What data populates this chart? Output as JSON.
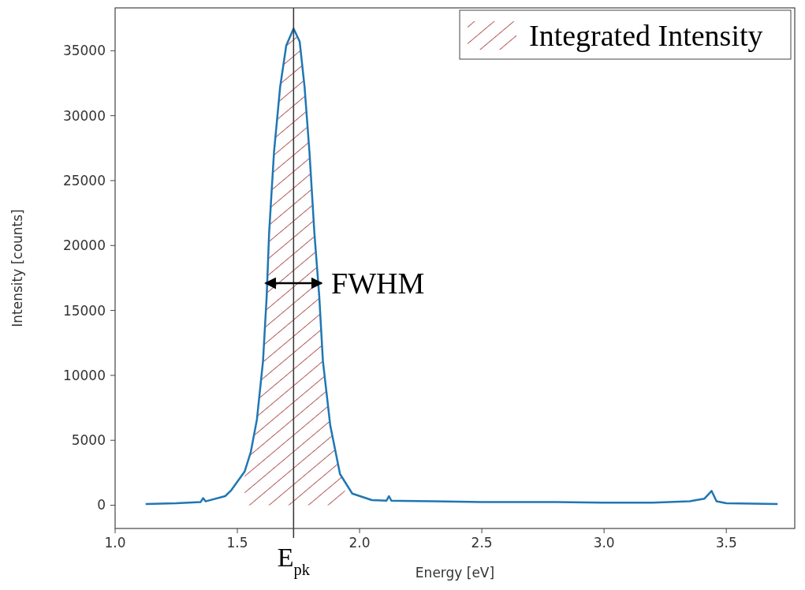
{
  "chart_data": {
    "type": "line",
    "xlabel": "Energy [eV]",
    "ylabel": "Intensity [counts]",
    "xlim": [
      1.0,
      3.78
    ],
    "ylim": [
      -1790,
      38300
    ],
    "xticks": [
      {
        "value": 1.0,
        "label": "1.0"
      },
      {
        "value": 1.5,
        "label": "1.5"
      },
      {
        "value": 2.0,
        "label": "2.0"
      },
      {
        "value": 2.5,
        "label": "2.5"
      },
      {
        "value": 3.0,
        "label": "3.0"
      },
      {
        "value": 3.5,
        "label": "3.5"
      }
    ],
    "yticks": [
      0,
      5000,
      10000,
      15000,
      20000,
      25000,
      30000,
      35000
    ],
    "grid": false,
    "legend": "top right",
    "series": [
      {
        "color": "#1f77b4",
        "x": [
          1.125,
          1.25,
          1.35,
          1.36,
          1.37,
          1.45,
          1.475,
          1.53,
          1.555,
          1.58,
          1.605,
          1.62,
          1.63,
          1.65,
          1.675,
          1.7,
          1.73,
          1.755,
          1.775,
          1.795,
          1.815,
          1.835,
          1.85,
          1.88,
          1.92,
          1.97,
          2.05,
          2.11,
          2.12,
          2.13,
          2.3,
          2.5,
          2.8,
          3.0,
          3.2,
          3.35,
          3.41,
          3.44,
          3.46,
          3.5,
          3.71
        ],
        "values": [
          100,
          150,
          250,
          550,
          300,
          700,
          1150,
          2600,
          4100,
          6600,
          11100,
          16100,
          21000,
          27200,
          32200,
          35400,
          36700,
          35700,
          32200,
          27200,
          21000,
          16100,
          11100,
          6150,
          2400,
          900,
          400,
          350,
          700,
          350,
          300,
          250,
          250,
          200,
          200,
          300,
          500,
          1100,
          300,
          150,
          100
        ]
      },
      {
        "type": "area",
        "name": "Integrated Intensity",
        "color": "#a03030",
        "x": [
          1.53,
          1.555,
          1.58,
          1.605,
          1.62,
          1.63,
          1.65,
          1.675,
          1.7,
          1.73,
          1.755,
          1.775,
          1.795,
          1.815,
          1.835,
          1.85,
          1.88,
          1.92,
          1.94
        ],
        "values": [
          2600,
          4100,
          6600,
          11100,
          16100,
          21000,
          27200,
          32200,
          35400,
          36700,
          35700,
          32200,
          27200,
          21000,
          16100,
          11100,
          6150,
          2400,
          1600
        ]
      }
    ],
    "ref_lines": [
      {
        "axis": "x",
        "value": 1.73,
        "label": "E$_{pk}$",
        "color": "#333333"
      }
    ],
    "annotations": [
      {
        "text": "FWHM",
        "x": 1.845,
        "y": 17100
      }
    ]
  }
}
